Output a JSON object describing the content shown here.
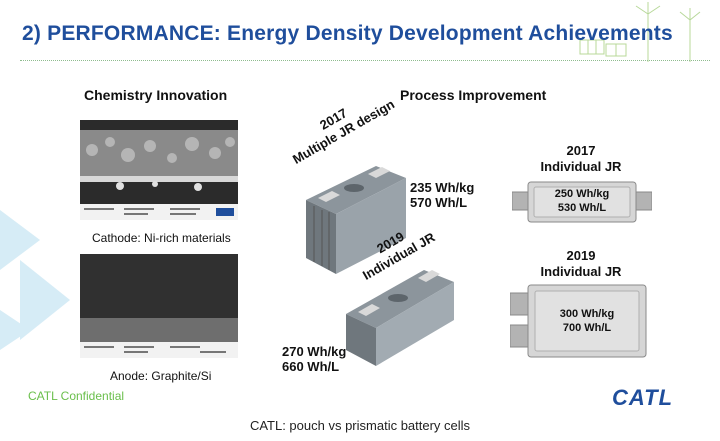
{
  "title": "2) PERFORMANCE: Energy Density Development Achievements",
  "sections": {
    "chemistry": "Chemistry Innovation",
    "process": "Process Improvement"
  },
  "micrographs": {
    "cathode_caption": "Cathode: Ni-rich materials",
    "anode_caption": "Anode: Graphite/Si"
  },
  "prismatic": {
    "label_2017": [
      "2017",
      "Multiple JR design"
    ],
    "spec_2017": [
      "235 Wh/kg",
      "570 Wh/L"
    ],
    "label_2019": [
      "2019",
      "Individual JR"
    ],
    "spec_2019": [
      "270 Wh/kg",
      "660 Wh/L"
    ]
  },
  "pouch": {
    "year_2017": "2017",
    "name_2017": "Individual  JR",
    "spec_2017": [
      "250 Wh/kg",
      "530 Wh/L"
    ],
    "year_2019": "2019",
    "name_2019": "Individual  JR",
    "spec_2019": [
      "300 Wh/kg",
      "700 Wh/L"
    ]
  },
  "confidential": "CATL Confidential",
  "logo": "CATL",
  "caption": "CATL: pouch vs prismatic battery cells"
}
